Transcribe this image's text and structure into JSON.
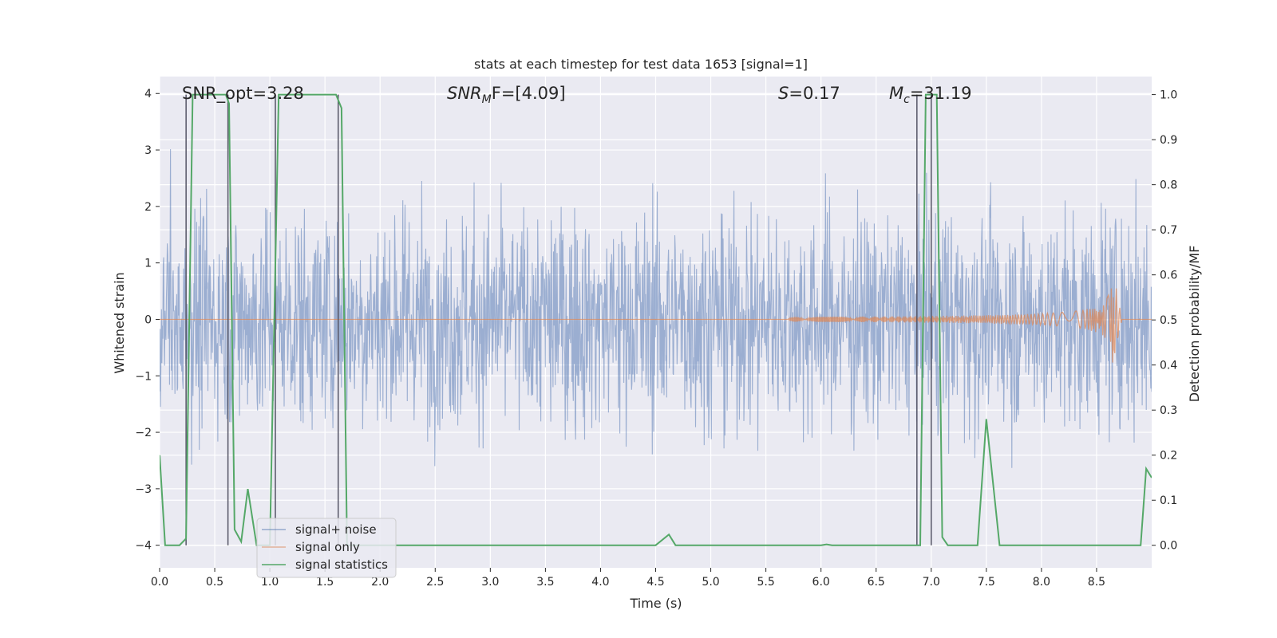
{
  "chart_data": {
    "type": "line",
    "title": "stats at each timestep for test data 1653 [signal=1]",
    "xlabel": "Time (s)",
    "ylabel": "Whitened strain",
    "ylabel_right": "Detection probability/MF",
    "xlim": [
      0.0,
      9.0
    ],
    "ylim": [
      -4.4,
      4.3
    ],
    "ylim_right": [
      -0.05,
      1.04
    ],
    "x_ticks": [
      "0.0",
      "0.5",
      "1.0",
      "1.5",
      "2.0",
      "2.5",
      "3.0",
      "3.5",
      "4.0",
      "4.5",
      "5.0",
      "5.5",
      "6.0",
      "6.5",
      "7.0",
      "7.5",
      "8.0",
      "8.5"
    ],
    "y_ticks": [
      "−4",
      "−3",
      "−2",
      "−1",
      "0",
      "1",
      "2",
      "3",
      "4"
    ],
    "y_ticks_right": [
      "0.0",
      "0.1",
      "0.2",
      "0.3",
      "0.4",
      "0.5",
      "0.6",
      "0.7",
      "0.8",
      "0.9",
      "1.0"
    ],
    "annotations": [
      "SNR_opt=3.28",
      "SNR",
      "M",
      "F=[4.09]",
      "S",
      "=0.17",
      "M",
      "c",
      "=31.19"
    ],
    "vertical_markers": [
      0.24,
      0.62,
      1.05,
      1.62,
      6.87,
      7.0
    ],
    "series": [
      {
        "name": "signal+ noise",
        "color": "#4c72b0",
        "description": "whitened strain noise, approx. range -4 to 4 (dense)"
      },
      {
        "name": "signal only",
        "color": "#dd8452",
        "chirp_start": 5.7,
        "merger": 8.65,
        "peak_amplitude": 0.85
      },
      {
        "name": "signal statistics",
        "color": "#55a868",
        "axis": "right",
        "x": [
          0.0,
          0.05,
          0.18,
          0.24,
          0.3,
          0.6,
          0.63,
          0.68,
          0.74,
          0.8,
          0.88,
          1.0,
          1.08,
          1.12,
          1.6,
          1.65,
          1.7,
          2.0,
          3.0,
          4.0,
          4.5,
          4.62,
          4.68,
          5.0,
          6.0,
          6.05,
          6.1,
          6.8,
          6.9,
          6.95,
          7.05,
          7.1,
          7.15,
          7.42,
          7.5,
          7.62,
          8.0,
          8.5,
          8.9,
          8.95,
          9.0
        ],
        "y": [
          0.2,
          0.0,
          0.0,
          0.015,
          1.0,
          1.0,
          0.98,
          0.035,
          0.008,
          0.125,
          0.0,
          0.0,
          1.0,
          1.0,
          1.0,
          0.97,
          0.0,
          0.0,
          0.0,
          0.0,
          0.0,
          0.024,
          0.0,
          0.0,
          0.0,
          0.002,
          0.0,
          0.0,
          0.0,
          1.0,
          1.0,
          0.018,
          0.0,
          0.0,
          0.28,
          0.0,
          0.0,
          0.0,
          0.0,
          0.17,
          0.15
        ]
      }
    ],
    "legend_position": "lower-left"
  }
}
